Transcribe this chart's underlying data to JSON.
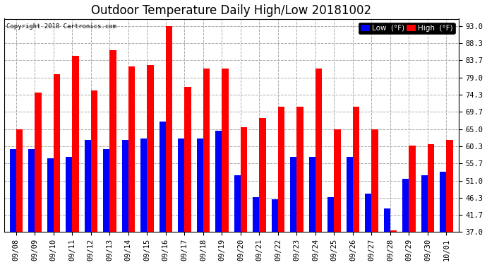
{
  "title": "Outdoor Temperature Daily High/Low 20181002",
  "copyright": "Copyright 2018 Cartronics.com",
  "legend_low": "Low  (°F)",
  "legend_high": "High  (°F)",
  "dates": [
    "09/08",
    "09/09",
    "09/10",
    "09/11",
    "09/12",
    "09/13",
    "09/14",
    "09/15",
    "09/16",
    "09/17",
    "09/18",
    "09/19",
    "09/20",
    "09/21",
    "09/22",
    "09/23",
    "09/24",
    "09/25",
    "09/26",
    "09/27",
    "09/28",
    "09/29",
    "09/30",
    "10/01"
  ],
  "high": [
    65.0,
    75.0,
    80.0,
    85.0,
    75.5,
    86.5,
    82.0,
    82.5,
    93.0,
    76.5,
    81.5,
    81.5,
    65.5,
    68.0,
    71.0,
    71.0,
    81.5,
    65.0,
    71.0,
    65.0,
    37.5,
    60.5,
    61.0,
    62.0
  ],
  "low": [
    59.5,
    59.5,
    57.0,
    57.5,
    62.0,
    59.5,
    62.0,
    62.5,
    67.0,
    62.5,
    62.5,
    64.5,
    52.5,
    46.5,
    46.0,
    57.5,
    57.5,
    46.5,
    57.5,
    47.5,
    43.5,
    51.5,
    52.5,
    53.5
  ],
  "ylim_min": 37.0,
  "ylim_max": 95.0,
  "yticks": [
    37.0,
    41.7,
    46.3,
    51.0,
    55.7,
    60.3,
    65.0,
    69.7,
    74.3,
    79.0,
    83.7,
    88.3,
    93.0
  ],
  "high_color": "#FF0000",
  "low_color": "#0000FF",
  "bg_color": "#FFFFFF",
  "plot_bg_color": "#FFFFFF",
  "grid_color": "#AAAAAA",
  "title_fontsize": 12,
  "tick_fontsize": 7.5,
  "legend_bg_low": "#0000FF",
  "legend_bg_high": "#FF0000",
  "legend_text_color": "#FFFFFF",
  "bar_width": 0.35
}
